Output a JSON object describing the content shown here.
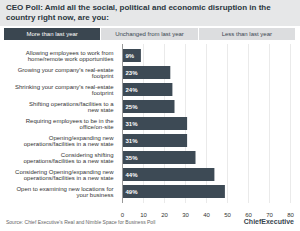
{
  "chart_data": {
    "type": "bar",
    "orientation": "horizontal",
    "title": "CEO Poll: Amid all the social, political and economic disruption in the country right now, are you:",
    "tabs": [
      "More than last year",
      "Unchanged from last year",
      "Less than last year"
    ],
    "categories": [
      "Allowing employees to work from home/remote work opportunities",
      "Growing your company's real-estate footprint",
      "Shrinking your company's real-estate footprint",
      "Shifting operations/facilities to a new state",
      "Requiring employees to be in the office/on-site",
      "Opening/expanding new operations/facilities in a new state",
      "Considering shifting operations/facilities to a new state",
      "Considering Opening/expanding new operations/facilities in a new state",
      "Open to examining new locations for your business"
    ],
    "values": [
      9,
      23,
      24,
      25,
      31,
      31,
      35,
      44,
      49
    ],
    "value_labels": [
      "9%",
      "23%",
      "24%",
      "25%",
      "31%",
      "31%",
      "35%",
      "44%",
      "49%"
    ],
    "data_labels": true,
    "color": "#3d4a55",
    "xlim": [
      0,
      80
    ],
    "xticks": [
      0,
      10,
      20,
      30,
      40,
      50,
      60,
      70,
      80
    ],
    "grid": true,
    "source": "Source: Chief Executive's Real and Nimble Space for Business Poll",
    "annotations": [
      "ChiefExecutive"
    ]
  }
}
